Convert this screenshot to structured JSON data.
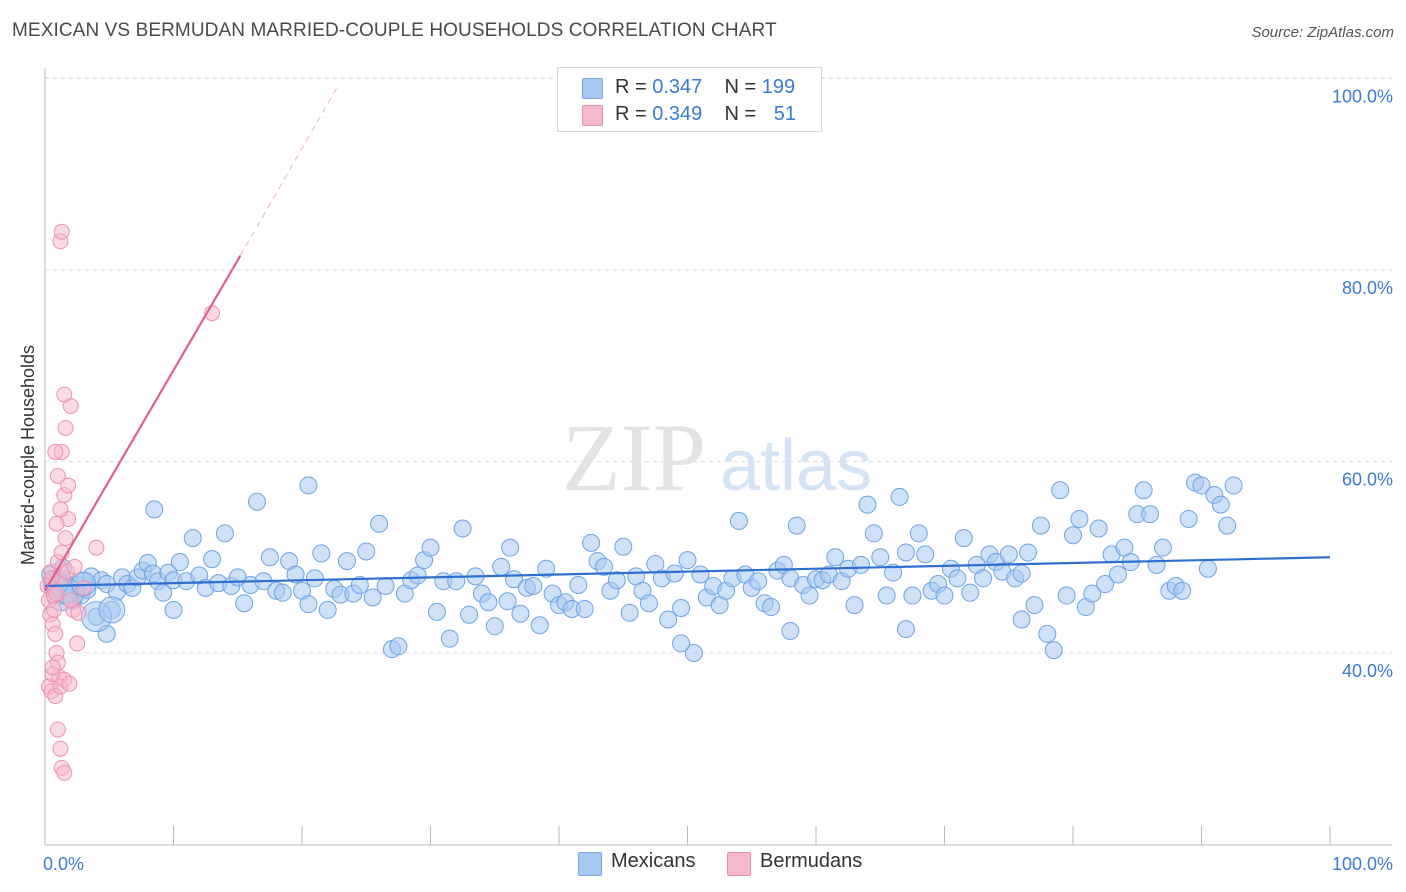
{
  "title": "MEXICAN VS BERMUDAN MARRIED-COUPLE HOUSEHOLDS CORRELATION CHART",
  "source": "Source: ZipAtlas.com",
  "watermark": {
    "zip": "ZIP",
    "atlas": "atlas"
  },
  "legend": {
    "rows": [
      {
        "r_label": "R = ",
        "r_value": "0.347",
        "n_label": "N = ",
        "n_value": "199",
        "color": "#a8c8f0",
        "border": "#7aaae6"
      },
      {
        "r_label": "R = ",
        "r_value": "0.349",
        "n_label": "N = ",
        "n_value": "51",
        "color": "#f6b8cc",
        "border": "#ee90b0"
      }
    ]
  },
  "bottom_legend": [
    {
      "label": "Mexicans",
      "color": "#a8c8f0",
      "border": "#7aaae6"
    },
    {
      "label": "Bermudans",
      "color": "#f6b8cc",
      "border": "#ee90b0"
    }
  ],
  "chart_data": {
    "type": "scatter",
    "title": "MEXICAN VS BERMUDAN MARRIED-COUPLE HOUSEHOLDS CORRELATION CHART",
    "ylabel": "Married-couple Households",
    "xlabel": "",
    "xlim": [
      0,
      100
    ],
    "ylim": [
      22,
      102
    ],
    "x_tick_labels": [
      "0.0%",
      "100.0%"
    ],
    "y_ticks": [
      40,
      60,
      80,
      100
    ],
    "y_tick_labels": [
      "40.0%",
      "60.0%",
      "80.0%",
      "100.0%"
    ],
    "grid": "horizontal dashed",
    "series": [
      {
        "name": "Mexicans",
        "color": "#6fa3e6",
        "fill": "#a8c8f0",
        "trend": {
          "x": [
            0,
            100
          ],
          "y": [
            47.0,
            50.0
          ],
          "color": "#2f6fd0"
        },
        "points": [
          [
            0.4,
            48.2
          ],
          [
            0.6,
            47.0
          ],
          [
            0.8,
            46.5
          ],
          [
            1.0,
            47.8
          ],
          [
            1.2,
            46.0
          ],
          [
            1.4,
            48.9
          ],
          [
            1.6,
            47.3
          ],
          [
            1.8,
            46.2
          ],
          [
            2.0,
            46.8
          ],
          [
            2.2,
            45.5
          ],
          [
            2.5,
            47.1
          ],
          [
            2.8,
            46.0
          ],
          [
            3.0,
            47.5
          ],
          [
            3.3,
            46.6
          ],
          [
            3.6,
            48.0
          ],
          [
            4.0,
            43.8
          ],
          [
            4.4,
            47.6
          ],
          [
            4.8,
            47.2
          ],
          [
            5.2,
            44.5
          ],
          [
            5.6,
            46.4
          ],
          [
            6.0,
            47.9
          ],
          [
            6.4,
            47.2
          ],
          [
            6.8,
            46.8
          ],
          [
            7.2,
            47.9
          ],
          [
            7.6,
            48.6
          ],
          [
            8.0,
            49.4
          ],
          [
            8.4,
            48.3
          ],
          [
            8.8,
            47.5
          ],
          [
            9.2,
            46.3
          ],
          [
            9.6,
            48.4
          ],
          [
            10.0,
            47.6
          ],
          [
            10.5,
            49.5
          ],
          [
            11.0,
            47.5
          ],
          [
            11.5,
            52.0
          ],
          [
            12.0,
            48.1
          ],
          [
            12.5,
            46.8
          ],
          [
            13.0,
            49.8
          ],
          [
            13.5,
            47.3
          ],
          [
            14.0,
            52.5
          ],
          [
            14.5,
            47.0
          ],
          [
            15.0,
            47.9
          ],
          [
            15.5,
            45.2
          ],
          [
            16.0,
            47.1
          ],
          [
            16.5,
            55.8
          ],
          [
            17.0,
            47.5
          ],
          [
            17.5,
            50.0
          ],
          [
            18.0,
            46.5
          ],
          [
            18.5,
            46.3
          ],
          [
            19.0,
            49.6
          ],
          [
            19.5,
            48.2
          ],
          [
            20.0,
            46.5
          ],
          [
            20.5,
            45.1
          ],
          [
            21.0,
            47.8
          ],
          [
            21.5,
            50.4
          ],
          [
            22.0,
            44.5
          ],
          [
            22.5,
            46.7
          ],
          [
            23.0,
            46.1
          ],
          [
            23.5,
            49.6
          ],
          [
            24.0,
            46.2
          ],
          [
            24.5,
            47.1
          ],
          [
            25.0,
            50.6
          ],
          [
            25.5,
            45.8
          ],
          [
            26.0,
            53.5
          ],
          [
            26.5,
            47.0
          ],
          [
            27.0,
            40.4
          ],
          [
            27.5,
            40.7
          ],
          [
            28.0,
            46.2
          ],
          [
            28.5,
            47.6
          ],
          [
            29.0,
            48.1
          ],
          [
            29.5,
            49.7
          ],
          [
            30.0,
            51.0
          ],
          [
            30.5,
            44.3
          ],
          [
            31.0,
            47.5
          ],
          [
            31.5,
            41.5
          ],
          [
            32.0,
            47.5
          ],
          [
            32.5,
            53.0
          ],
          [
            33.0,
            44.0
          ],
          [
            33.5,
            48.0
          ],
          [
            34.0,
            46.2
          ],
          [
            34.5,
            45.3
          ],
          [
            35.0,
            42.8
          ],
          [
            35.5,
            49.0
          ],
          [
            36.0,
            45.4
          ],
          [
            36.5,
            47.7
          ],
          [
            37.0,
            44.1
          ],
          [
            37.5,
            46.8
          ],
          [
            38.0,
            47.0
          ],
          [
            38.5,
            42.9
          ],
          [
            39.0,
            48.8
          ],
          [
            39.5,
            46.2
          ],
          [
            40.0,
            45.0
          ],
          [
            40.5,
            45.3
          ],
          [
            41.0,
            44.6
          ],
          [
            41.5,
            47.1
          ],
          [
            42.0,
            44.6
          ],
          [
            42.5,
            51.5
          ],
          [
            43.0,
            49.6
          ],
          [
            43.5,
            49.0
          ],
          [
            44.0,
            46.5
          ],
          [
            44.5,
            47.6
          ],
          [
            45.0,
            51.1
          ],
          [
            45.5,
            44.2
          ],
          [
            46.0,
            48.0
          ],
          [
            46.5,
            46.5
          ],
          [
            47.0,
            45.2
          ],
          [
            47.5,
            49.3
          ],
          [
            48.0,
            47.8
          ],
          [
            48.5,
            43.5
          ],
          [
            49.0,
            48.3
          ],
          [
            49.5,
            44.7
          ],
          [
            50.0,
            49.7
          ],
          [
            50.5,
            40.0
          ],
          [
            51.0,
            48.2
          ],
          [
            51.5,
            45.8
          ],
          [
            52.0,
            47.0
          ],
          [
            52.5,
            45.0
          ],
          [
            53.0,
            46.5
          ],
          [
            53.5,
            47.8
          ],
          [
            54.0,
            53.8
          ],
          [
            54.5,
            48.2
          ],
          [
            55.0,
            46.8
          ],
          [
            55.5,
            47.5
          ],
          [
            56.0,
            45.2
          ],
          [
            56.5,
            44.8
          ],
          [
            57.0,
            48.6
          ],
          [
            57.5,
            49.2
          ],
          [
            58.0,
            47.8
          ],
          [
            58.5,
            53.3
          ],
          [
            59.0,
            47.1
          ],
          [
            59.5,
            46.0
          ],
          [
            60.0,
            47.7
          ],
          [
            60.5,
            47.6
          ],
          [
            61.0,
            48.2
          ],
          [
            61.5,
            50.0
          ],
          [
            62.0,
            47.5
          ],
          [
            62.5,
            48.8
          ],
          [
            63.0,
            45.0
          ],
          [
            63.5,
            49.2
          ],
          [
            64.0,
            55.5
          ],
          [
            64.5,
            52.5
          ],
          [
            65.0,
            50.0
          ],
          [
            65.5,
            46.0
          ],
          [
            66.0,
            48.4
          ],
          [
            66.5,
            56.3
          ],
          [
            67.0,
            50.5
          ],
          [
            67.5,
            46.0
          ],
          [
            68.0,
            52.5
          ],
          [
            68.5,
            50.3
          ],
          [
            69.0,
            46.5
          ],
          [
            69.5,
            47.2
          ],
          [
            70.0,
            46.0
          ],
          [
            70.5,
            48.8
          ],
          [
            71.0,
            47.8
          ],
          [
            71.5,
            52.0
          ],
          [
            72.0,
            46.3
          ],
          [
            72.5,
            49.2
          ],
          [
            73.0,
            47.8
          ],
          [
            73.5,
            50.3
          ],
          [
            74.0,
            49.5
          ],
          [
            74.5,
            48.5
          ],
          [
            75.0,
            50.3
          ],
          [
            75.5,
            47.8
          ],
          [
            76.0,
            48.3
          ],
          [
            76.5,
            50.5
          ],
          [
            77.0,
            45.0
          ],
          [
            77.5,
            53.3
          ],
          [
            78.0,
            42.0
          ],
          [
            78.5,
            40.3
          ],
          [
            79.0,
            57.0
          ],
          [
            79.5,
            46.0
          ],
          [
            80.0,
            52.3
          ],
          [
            80.5,
            54.0
          ],
          [
            81.0,
            44.8
          ],
          [
            81.5,
            46.2
          ],
          [
            82.0,
            53.0
          ],
          [
            82.5,
            47.2
          ],
          [
            83.0,
            50.3
          ],
          [
            83.5,
            48.2
          ],
          [
            84.0,
            51.0
          ],
          [
            84.5,
            49.5
          ],
          [
            85.0,
            54.5
          ],
          [
            85.5,
            57.0
          ],
          [
            86.0,
            54.5
          ],
          [
            86.5,
            49.2
          ],
          [
            87.0,
            51.0
          ],
          [
            87.5,
            46.5
          ],
          [
            88.0,
            47.0
          ],
          [
            88.5,
            46.5
          ],
          [
            89.0,
            54.0
          ],
          [
            89.5,
            57.8
          ],
          [
            90.0,
            57.5
          ],
          [
            90.5,
            48.8
          ],
          [
            91.0,
            56.5
          ],
          [
            91.5,
            55.5
          ],
          [
            92.0,
            53.3
          ],
          [
            92.5,
            57.5
          ],
          [
            8.5,
            55.0
          ],
          [
            20.5,
            57.5
          ],
          [
            36.2,
            51.0
          ],
          [
            58.0,
            42.3
          ],
          [
            4.8,
            42.0
          ],
          [
            49.5,
            41.0
          ],
          [
            67.0,
            42.5
          ],
          [
            76.0,
            43.5
          ],
          [
            10.0,
            44.5
          ]
        ],
        "large_points": [
          [
            1.3,
            46.0,
            15
          ],
          [
            1.6,
            46.6,
            13
          ],
          [
            2.0,
            46.2,
            13
          ],
          [
            3.0,
            47.2,
            12
          ],
          [
            4.0,
            43.8,
            15
          ],
          [
            5.2,
            44.5,
            13
          ],
          [
            0.8,
            47.2,
            12
          ]
        ]
      },
      {
        "name": "Bermudans",
        "color": "#ee90b0",
        "fill": "#f6b8cc",
        "trend": {
          "x": [
            0,
            15.2
          ],
          "y": [
            46.5,
            81.5
          ],
          "dashed_to": [
            22.7,
            99
          ],
          "color": "#e06090"
        },
        "points": [
          [
            0.2,
            47.0
          ],
          [
            0.3,
            45.5
          ],
          [
            0.4,
            44.0
          ],
          [
            0.5,
            48.5
          ],
          [
            0.6,
            43.0
          ],
          [
            0.7,
            46.0
          ],
          [
            0.8,
            42.0
          ],
          [
            0.9,
            40.0
          ],
          [
            1.0,
            39.0
          ],
          [
            1.1,
            37.5
          ],
          [
            0.3,
            36.5
          ],
          [
            0.5,
            36.0
          ],
          [
            0.6,
            37.8
          ],
          [
            0.8,
            35.5
          ],
          [
            1.2,
            36.5
          ],
          [
            1.5,
            37.2
          ],
          [
            1.0,
            49.5
          ],
          [
            1.3,
            50.5
          ],
          [
            1.6,
            52.0
          ],
          [
            1.8,
            54.0
          ],
          [
            1.2,
            55.0
          ],
          [
            1.5,
            56.5
          ],
          [
            1.8,
            57.5
          ],
          [
            1.0,
            58.5
          ],
          [
            1.3,
            61.0
          ],
          [
            1.6,
            63.5
          ],
          [
            0.8,
            61.0
          ],
          [
            2.0,
            65.8
          ],
          [
            1.5,
            67.0
          ],
          [
            1.2,
            83.0
          ],
          [
            1.3,
            84.0
          ],
          [
            2.2,
            44.5
          ],
          [
            2.5,
            41.0
          ],
          [
            3.0,
            46.8
          ],
          [
            4.0,
            51.0
          ],
          [
            13.0,
            75.5
          ],
          [
            1.0,
            32.0
          ],
          [
            1.2,
            30.0
          ],
          [
            1.3,
            28.0
          ],
          [
            1.5,
            27.5
          ],
          [
            0.7,
            44.5
          ],
          [
            0.9,
            46.2
          ],
          [
            1.4,
            47.8
          ],
          [
            1.7,
            48.5
          ],
          [
            2.0,
            45.5
          ],
          [
            2.3,
            49.0
          ],
          [
            0.5,
            47.8
          ],
          [
            0.6,
            38.5
          ],
          [
            1.9,
            36.8
          ],
          [
            2.6,
            44.2
          ],
          [
            0.9,
            53.5
          ]
        ]
      }
    ]
  }
}
